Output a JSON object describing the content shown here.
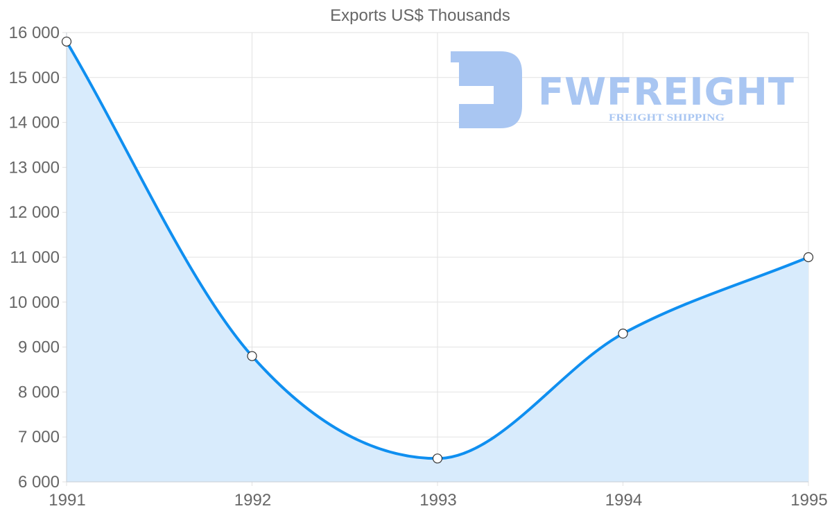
{
  "chart_data": {
    "type": "line",
    "title": "Exports US$ Thousands",
    "xlabel": "",
    "ylabel": "",
    "categories": [
      "1991",
      "1992",
      "1993",
      "1994",
      "1995"
    ],
    "series": [
      {
        "name": "Exports US$ Thousands",
        "values": [
          15800,
          8800,
          6520,
          9300,
          11000
        ]
      }
    ],
    "ylim": [
      6000,
      16000
    ],
    "yticks": [
      6000,
      7000,
      8000,
      9000,
      10000,
      11000,
      12000,
      13000,
      14000,
      15000,
      16000
    ],
    "ytick_labels": [
      "6 000",
      "7 000",
      "8 000",
      "9 000",
      "10 000",
      "11 000",
      "12 000",
      "13 000",
      "14 000",
      "15 000",
      "16 000"
    ],
    "grid": true,
    "legend": "none",
    "fill": true,
    "curve": "monotone",
    "colors": {
      "line": "#0f8ff0",
      "fill": "#d8ebfc",
      "grid": "#e2e2e2",
      "axis_text": "#666666",
      "point_fill": "#ffffff",
      "point_stroke": "#333333"
    }
  },
  "watermark": {
    "brand": "FWFREIGHT",
    "tagline": "FREIGHT SHIPPING",
    "color": "#a9c6f2"
  }
}
